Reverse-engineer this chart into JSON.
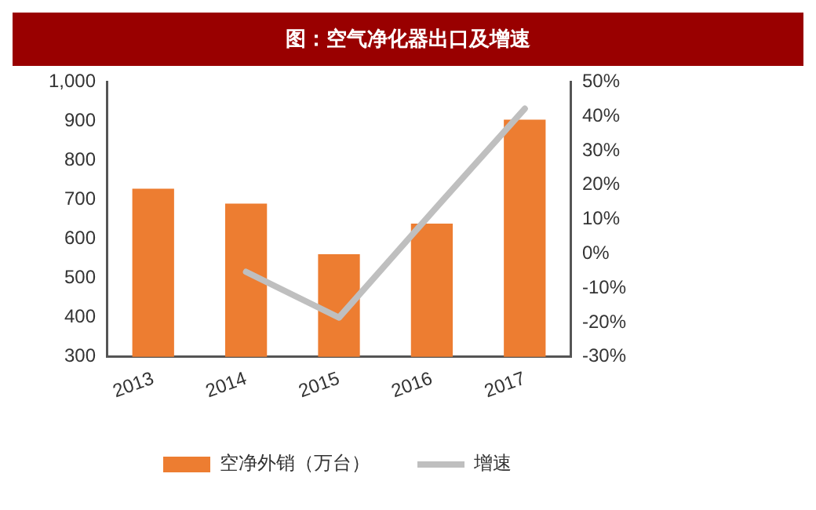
{
  "chart_data": {
    "type": "bar",
    "title": "图：空气净化器出口及增速",
    "categories": [
      "2013",
      "2014",
      "2015",
      "2016",
      "2017"
    ],
    "series": [
      {
        "name": "空净外销（万台）",
        "color": "#ed7d31",
        "values": [
          728,
          690,
          561,
          639,
          904
        ]
      },
      {
        "name": "增速",
        "type": "line",
        "axis": "y2",
        "color": "#bfbfbf",
        "values": [
          null,
          -5.3,
          -18.6,
          12,
          42.2
        ]
      }
    ],
    "ylim": [
      300,
      1000
    ],
    "yticks": [
      300,
      400,
      500,
      600,
      700,
      800,
      900,
      {
        "value": 1000,
        "label": "1,000"
      }
    ],
    "y2lim": [
      -30,
      50
    ],
    "y2ticks": [
      {
        "value": -30,
        "label": "-30%"
      },
      {
        "value": -20,
        "label": "-20%"
      },
      {
        "value": -10,
        "label": "-10%"
      },
      {
        "value": 0,
        "label": "0%"
      },
      {
        "value": 10,
        "label": "10%"
      },
      {
        "value": 20,
        "label": "20%"
      },
      {
        "value": 30,
        "label": "30%"
      },
      {
        "value": 40,
        "label": "40%"
      },
      {
        "value": 50,
        "label": "50%"
      }
    ],
    "grid": false,
    "legend": "bottom",
    "marker": "none",
    "line_style": "solid"
  }
}
